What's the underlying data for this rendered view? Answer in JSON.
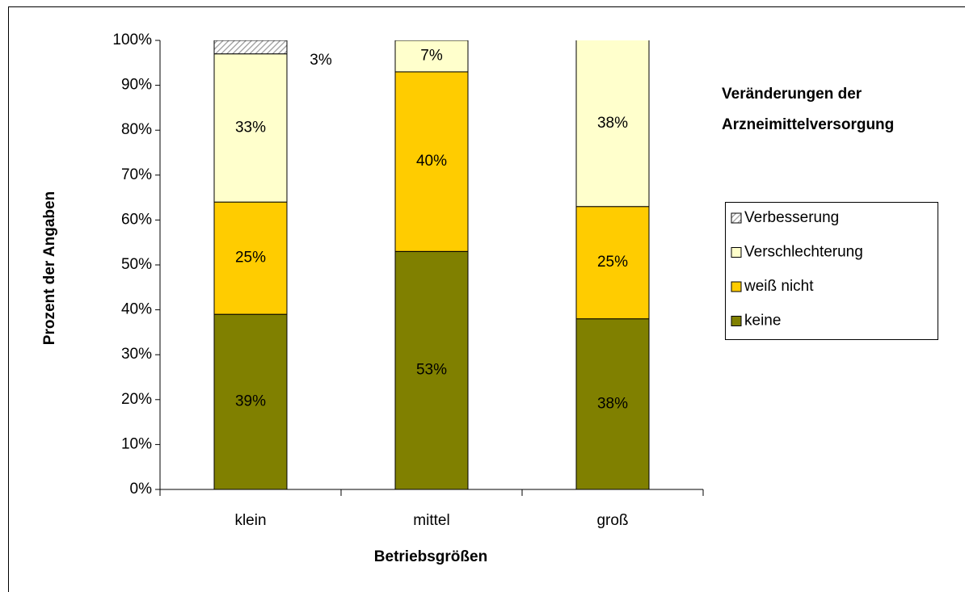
{
  "chart_data": {
    "type": "stacked_bar",
    "title": [
      "Veränderungen der",
      "Arzneimittelversorgung"
    ],
    "x_label": "Betriebsgrößen",
    "y_label": "Prozent der Angaben",
    "categories": [
      "klein",
      "mittel",
      "groß"
    ],
    "series": [
      {
        "name": "keine",
        "color": "#808000",
        "values": [
          39,
          53,
          38
        ],
        "value_labels": [
          "39%",
          "53%",
          "38%"
        ]
      },
      {
        "name": "weiß nicht",
        "color": "#ffcc00",
        "values": [
          25,
          40,
          25
        ],
        "value_labels": [
          "25%",
          "40%",
          "25%"
        ]
      },
      {
        "name": "Verschlechterung",
        "color": "#ffffcc",
        "values": [
          33,
          7,
          38
        ],
        "value_labels": [
          "33%",
          "7%",
          "38%"
        ]
      },
      {
        "name": "Verbesserung",
        "color": "#999999",
        "hatch": true,
        "values": [
          3,
          0,
          0
        ],
        "value_labels": [
          "3%",
          null,
          null
        ]
      }
    ],
    "ylim": [
      0,
      100
    ],
    "yticks": [
      {
        "value": 0,
        "label": "0%"
      },
      {
        "value": 10,
        "label": "10%"
      },
      {
        "value": 20,
        "label": "20%"
      },
      {
        "value": 30,
        "label": "30%"
      },
      {
        "value": 40,
        "label": "40%"
      },
      {
        "value": 50,
        "label": "50%"
      },
      {
        "value": 60,
        "label": "60%"
      },
      {
        "value": 70,
        "label": "70%"
      },
      {
        "value": 80,
        "label": "80%"
      },
      {
        "value": 90,
        "label": "90%"
      },
      {
        "value": 100,
        "label": "100%"
      }
    ],
    "legend": "right"
  }
}
